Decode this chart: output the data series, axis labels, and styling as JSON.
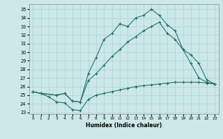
{
  "xlabel": "Humidex (Indice chaleur)",
  "xlim": [
    -0.5,
    23.5
  ],
  "ylim": [
    22.8,
    35.6
  ],
  "xticks": [
    0,
    1,
    2,
    3,
    4,
    5,
    6,
    7,
    8,
    9,
    10,
    11,
    12,
    13,
    14,
    15,
    16,
    17,
    18,
    19,
    20,
    21,
    22,
    23
  ],
  "yticks": [
    23,
    24,
    25,
    26,
    27,
    28,
    29,
    30,
    31,
    32,
    33,
    34,
    35
  ],
  "bg_color": "#cce8e8",
  "grid_color": "#aacccc",
  "line_color": "#1a6b6b",
  "line1_x": [
    0,
    1,
    2,
    3,
    4,
    5,
    6,
    7,
    8,
    9,
    10,
    11,
    12,
    13,
    14,
    15,
    16,
    17,
    18,
    19,
    20,
    21,
    22,
    23
  ],
  "line1_y": [
    25.4,
    25.2,
    24.8,
    24.2,
    24.1,
    23.3,
    23.2,
    24.5,
    25.0,
    25.2,
    25.4,
    25.6,
    25.8,
    26.0,
    26.1,
    26.2,
    26.3,
    26.4,
    26.5,
    26.5,
    26.5,
    26.5,
    26.4,
    26.3
  ],
  "line2_x": [
    0,
    1,
    3,
    4,
    5,
    6,
    7,
    8,
    9,
    10,
    11,
    12,
    13,
    14,
    15,
    16,
    17,
    18,
    19,
    20,
    21,
    22,
    23
  ],
  "line2_y": [
    25.4,
    25.2,
    25.0,
    25.2,
    24.3,
    24.2,
    27.5,
    29.4,
    31.5,
    32.2,
    33.3,
    33.0,
    34.0,
    34.3,
    35.0,
    34.3,
    33.2,
    32.5,
    30.3,
    28.7,
    27.0,
    26.5,
    26.3
  ],
  "line3_x": [
    0,
    1,
    3,
    4,
    5,
    6,
    7,
    8,
    9,
    10,
    11,
    12,
    13,
    14,
    15,
    16,
    17,
    18,
    19,
    20,
    21,
    22,
    23
  ],
  "line3_y": [
    25.4,
    25.2,
    25.0,
    25.2,
    24.3,
    24.2,
    26.7,
    27.5,
    28.5,
    29.5,
    30.3,
    31.2,
    31.8,
    32.5,
    33.0,
    33.5,
    32.2,
    31.5,
    30.3,
    29.7,
    28.7,
    26.8,
    26.3
  ]
}
